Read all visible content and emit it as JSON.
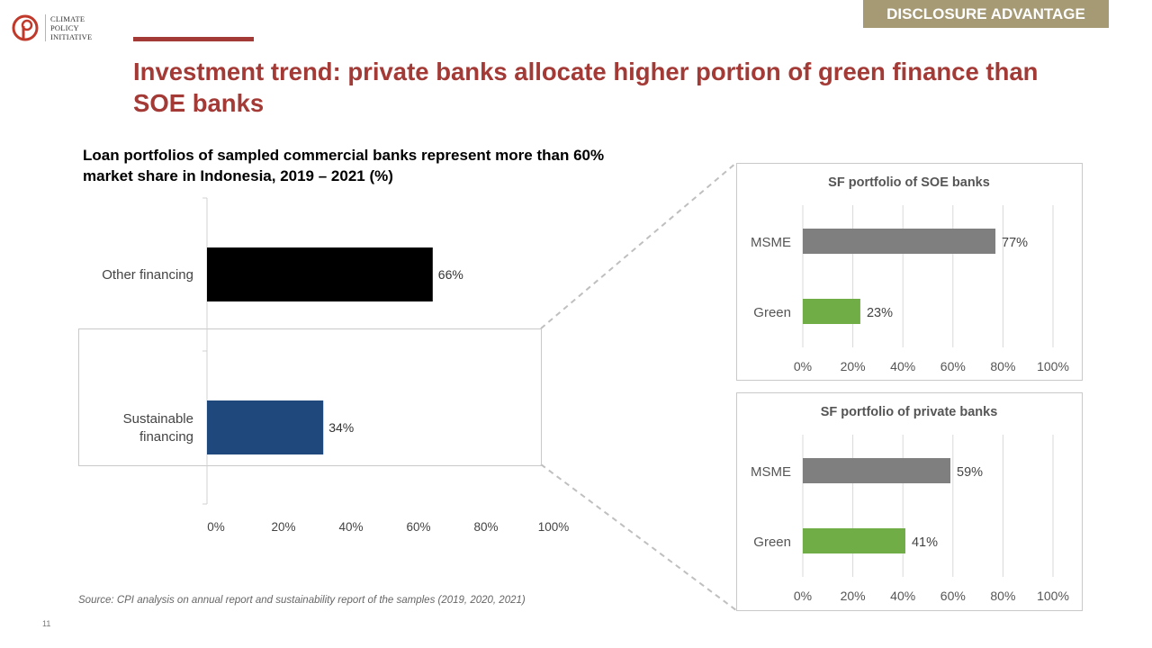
{
  "logo": {
    "lines": [
      "CLIMATE",
      "POLICY",
      "INITIATIVE"
    ]
  },
  "tag": "DISCLOSURE ADVANTAGE",
  "title": "Investment trend: private banks allocate higher portion of green finance than SOE banks",
  "subtitle": "Loan portfolios of sampled commercial banks represent more than 60% market share in Indonesia, 2019 – 2021 (%)",
  "source": "Source: CPI analysis on annual report and sustainability report of the samples (2019, 2020, 2021)",
  "page_number": "11",
  "colors": {
    "accent": "#a33a36",
    "tag": "#a59a73",
    "other_financing": "#000000",
    "sustainable_financing": "#1f497d",
    "msme": "#7f7f7f",
    "green": "#70ad47"
  },
  "chart_data": [
    {
      "type": "bar",
      "orientation": "horizontal",
      "title": "",
      "categories": [
        "Other financing",
        "Sustainable financing"
      ],
      "category_lines": [
        [
          "Other financing"
        ],
        [
          "Sustainable",
          "financing"
        ]
      ],
      "values": [
        66,
        34
      ],
      "value_labels": [
        "66%",
        "34%"
      ],
      "bar_colors": [
        "#000000",
        "#1f497d"
      ],
      "xlim": [
        0,
        100
      ],
      "ticks": [
        "0%",
        "20%",
        "40%",
        "60%",
        "80%",
        "100%"
      ],
      "grid": false
    },
    {
      "type": "bar",
      "orientation": "horizontal",
      "title": "SF portfolio of SOE banks",
      "categories": [
        "MSME",
        "Green"
      ],
      "values": [
        77,
        23
      ],
      "value_labels": [
        "77%",
        "23%"
      ],
      "bar_colors": [
        "#7f7f7f",
        "#70ad47"
      ],
      "xlim": [
        0,
        100
      ],
      "ticks": [
        "0%",
        "20%",
        "40%",
        "60%",
        "80%",
        "100%"
      ],
      "grid": true
    },
    {
      "type": "bar",
      "orientation": "horizontal",
      "title": "SF portfolio of private banks",
      "categories": [
        "MSME",
        "Green"
      ],
      "values": [
        59,
        41
      ],
      "value_labels": [
        "59%",
        "41%"
      ],
      "bar_colors": [
        "#7f7f7f",
        "#70ad47"
      ],
      "xlim": [
        0,
        100
      ],
      "ticks": [
        "0%",
        "20%",
        "40%",
        "60%",
        "80%",
        "100%"
      ],
      "grid": true
    }
  ]
}
